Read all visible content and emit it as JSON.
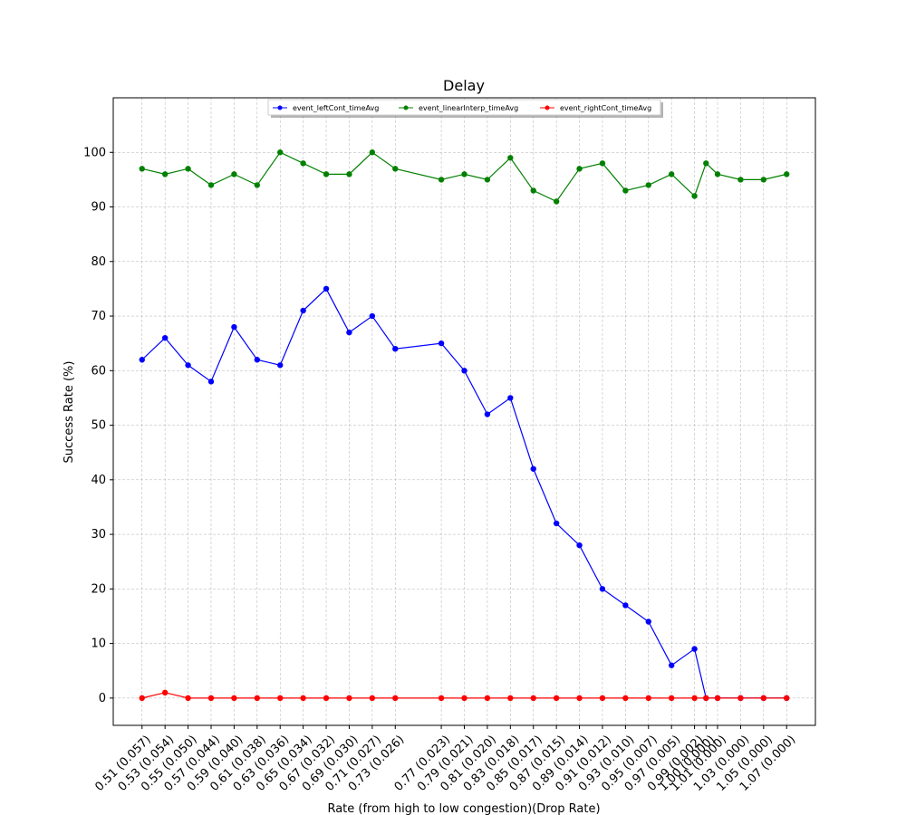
{
  "chart_data": {
    "type": "line",
    "title": "Delay",
    "xlabel": "Rate (from high to low congestion)(Drop Rate)",
    "ylabel": "Success Rate (%)",
    "x": [
      0.51,
      0.53,
      0.55,
      0.57,
      0.59,
      0.61,
      0.63,
      0.65,
      0.67,
      0.69,
      0.71,
      0.73,
      0.77,
      0.79,
      0.81,
      0.83,
      0.85,
      0.87,
      0.89,
      0.91,
      0.93,
      0.95,
      0.97,
      0.99,
      1.0,
      1.01,
      1.03,
      1.05,
      1.07
    ],
    "tick_labels": [
      "0.51 (0.057)",
      "0.53 (0.054)",
      "0.55 (0.050)",
      "0.57 (0.044)",
      "0.59 (0.040)",
      "0.61 (0.038)",
      "0.63 (0.036)",
      "0.65 (0.034)",
      "0.67 (0.032)",
      "0.69 (0.030)",
      "0.71 (0.027)",
      "0.73 (0.026)",
      "0.77 (0.023)",
      "0.79 (0.021)",
      "0.81 (0.020)",
      "0.83 (0.018)",
      "0.85 (0.017)",
      "0.87 (0.015)",
      "0.89 (0.014)",
      "0.91 (0.012)",
      "0.93 (0.010)",
      "0.95 (0.007)",
      "0.97 (0.005)",
      "0.99 (0.002)",
      "1.00 (0.000)",
      "1.01 (0.000)",
      "1.03 (0.000)",
      "1.05 (0.000)",
      "1.07 (0.000)"
    ],
    "xlim": [
      0.485,
      1.095
    ],
    "ylim": [
      -5,
      110
    ],
    "yticks": [
      0,
      10,
      20,
      30,
      40,
      50,
      60,
      70,
      80,
      90,
      100
    ],
    "grid": true,
    "legend_placement": "top-center",
    "series": [
      {
        "name": "event_leftCont_timeAvg",
        "color": "#0000ff",
        "values": [
          62,
          66,
          61,
          58,
          68,
          62,
          61,
          71,
          75,
          67,
          70,
          64,
          65,
          60,
          52,
          55,
          42,
          32,
          28,
          20,
          17,
          14,
          6,
          9,
          0,
          0,
          0,
          0,
          0
        ]
      },
      {
        "name": "event_linearInterp_timeAvg",
        "color": "#008000",
        "values": [
          97,
          96,
          97,
          94,
          96,
          94,
          100,
          98,
          96,
          96,
          100,
          97,
          95,
          96,
          95,
          99,
          93,
          91,
          97,
          98,
          93,
          94,
          96,
          92,
          98,
          96,
          95,
          95,
          96
        ]
      },
      {
        "name": "event_rightCont_timeAvg",
        "color": "#ff0000",
        "values": [
          0,
          1,
          0,
          0,
          0,
          0,
          0,
          0,
          0,
          0,
          0,
          0,
          0,
          0,
          0,
          0,
          0,
          0,
          0,
          0,
          0,
          0,
          0,
          0,
          0,
          0,
          0,
          0,
          0
        ]
      }
    ]
  }
}
